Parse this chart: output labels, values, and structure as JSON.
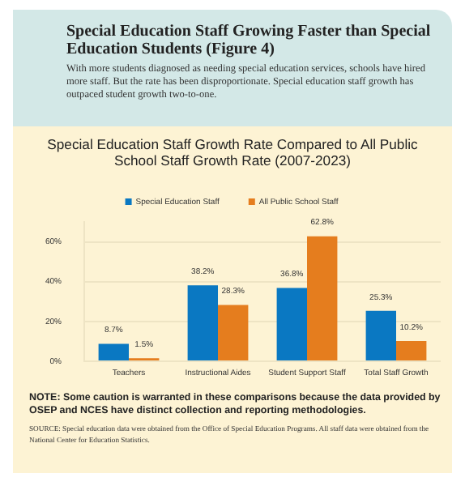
{
  "chart_data": {
    "type": "bar",
    "title": "Special Education Staff Growth Rate Compared to All Public School Staff Growth Rate (2007-2023)",
    "categories": [
      "Teachers",
      "Instructional Aides",
      "Student Support Staff",
      "Total Staff Growth"
    ],
    "series": [
      {
        "name": "Special Education Staff",
        "color": "#0a78c2",
        "values": [
          8.7,
          38.2,
          36.8,
          25.3
        ],
        "value_labels": [
          "8.7%",
          "38.2%",
          "36.8%",
          "25.3%"
        ]
      },
      {
        "name": "All Public School Staff",
        "color": "#e57d1e",
        "values": [
          1.5,
          28.3,
          62.8,
          10.2
        ],
        "value_labels": [
          "1.5%",
          "28.3%",
          "62.8%",
          "10.2%"
        ]
      }
    ],
    "ylim": [
      0,
      70
    ],
    "yticks": [
      {
        "value": 0,
        "label": "0%"
      },
      {
        "value": 20,
        "label": "20%"
      },
      {
        "value": 40,
        "label": "40%"
      },
      {
        "value": 60,
        "label": "60%"
      }
    ],
    "grid": "y",
    "legend": "top",
    "annotations": [
      "Special Education Staff Growing Faster than Special Education Students (Figure 4)",
      "With more students diagnosed as needing special education services, schools have hired more staff. But the rate has been disproportionate. Special education staff growth has outpaced student growth two-to-one.",
      "NOTE: Some caution is warranted in these comparisons because the data provided by OSEP and NCES have distinct collection and reporting methodologies.",
      "SOURCE: Special education data were obtained from the Office of Special Education Programs. All staff data were obtained from the National Center for Education Statistics."
    ]
  }
}
